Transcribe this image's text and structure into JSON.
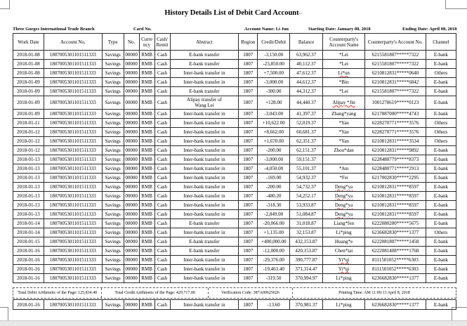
{
  "page": {
    "title": "History Details List of Debit Card Account",
    "info": {
      "branch": "Three Gorges International Trade Branch",
      "card_no_label": "Card No.",
      "account_name": "Account Name: Li Jun",
      "starting_date": "Starting Date:  January 08, 2018",
      "ending_date": "Ending Date: April 08, 2018"
    }
  },
  "table": {
    "col_keys": [
      "date",
      "account",
      "type",
      "no",
      "currency",
      "cash",
      "abstract",
      "region",
      "amount",
      "balance",
      "cp_name",
      "cp_account",
      "channel"
    ],
    "headers": [
      "Work Date",
      "Account No.",
      "Type",
      "No.",
      "Curre ncy",
      "Cash/ Remit",
      "Abstract",
      "Region",
      "Credit/Debit",
      "Balance",
      "Counterparty's Account Name",
      "Counterparty's Account No.",
      "Channel"
    ],
    "rows": [
      {
        "date": "2018-01-08",
        "account": "1807005301101511333",
        "type": "Savings",
        "no": "00000",
        "currency": "RMB",
        "cash": "Cash",
        "abstract": "E-bank transfer",
        "region": "1807",
        "amount": "-3,150.00",
        "balance": "63,962.37",
        "cp_name": "*Lei",
        "cp_account": "6215581807*****7322",
        "channel": "E-bank",
        "squiggle": false
      },
      {
        "date": "2018-01-08",
        "account": "1807005301101511333",
        "type": "Savings",
        "no": "00000",
        "currency": "RMB",
        "cash": "Cash",
        "abstract": "E-bank transfer",
        "region": "1807",
        "amount": "-23,850.00",
        "balance": "40,112.37",
        "cp_name": "*Lei",
        "cp_account": "6215581807*****7322",
        "channel": "E-bank",
        "squiggle": false
      },
      {
        "date": "2018-01-08",
        "account": "1807005301101511333",
        "type": "Savings",
        "no": "00000",
        "currency": "RMB",
        "cash": "Cash",
        "abstract": "Inter-bank transfer in",
        "region": "1807",
        "amount": "+7,500.00",
        "balance": "47,612.37",
        "cp_name": "Li*un",
        "cp_account": "6210812831*****0640",
        "channel": "Others",
        "squiggle": true
      },
      {
        "date": "2018-01-09",
        "account": "1807005301101511333",
        "type": "Savings",
        "no": "00000",
        "currency": "RMB",
        "cash": "Cash",
        "abstract": "Inter-bank transfer in",
        "region": "1807",
        "amount": "-3,000.00",
        "balance": "44,612.37",
        "cp_name": "*Bin",
        "cp_account": "6210812831*****6842",
        "channel": "E-bank",
        "squiggle": false
      },
      {
        "date": "2018-01-09",
        "account": "1807005301101511333",
        "type": "Savings",
        "no": "00000",
        "currency": "RMB",
        "cash": "Cash",
        "abstract": "E-bank transfer",
        "region": "1807",
        "amount": "-300.00",
        "balance": "44,312.37",
        "cp_name": "*Lei",
        "cp_account": "6215581807*****7322",
        "channel": "E-bank",
        "squiggle": false
      },
      {
        "date": "2018-01-09",
        "account": "1807005301101511333",
        "type": "Savings",
        "no": "00000",
        "currency": "RMB",
        "cash": "Cash",
        "abstract": "Alipay transfer of\nWang Lei",
        "region": "1807",
        "amount": "+128.00",
        "balance": "44,440.37",
        "cp_name": "Alipay *Jin",
        "cp_account": "1001278619*****0123",
        "channel": "E-bank",
        "squiggle": true
      },
      {
        "date": "2018-01-09",
        "account": "1807005301101511333",
        "type": "Savings",
        "no": "00000",
        "currency": "RMB",
        "cash": "Cash",
        "abstract": "Inter-bank transfer in",
        "region": "1807",
        "amount": "-3,043.00",
        "balance": "41,397.37",
        "cp_name": "Zhang*yang",
        "cp_account": "6217887000*****4743",
        "channel": "E-bank",
        "squiggle": false
      },
      {
        "date": "2018-01-11",
        "account": "1807005301101511333",
        "type": "Savings",
        "no": "00000",
        "currency": "RMB",
        "cash": "Cash",
        "abstract": "Inter-bank transfer in",
        "region": "1807",
        "amount": "+10,622.00",
        "balance": "52,019.37",
        "cp_name": "*Yan",
        "cp_account": "6228270771*****3576",
        "channel": "Others",
        "squiggle": false
      },
      {
        "date": "2018-01-12",
        "account": "1807005301101511333",
        "type": "Savings",
        "no": "00000",
        "currency": "RMB",
        "cash": "Cash",
        "abstract": "Inter-bank transfer in",
        "region": "1807",
        "amount": "+8,662.00",
        "balance": "60,681.37",
        "cp_name": "*Yan",
        "cp_account": "6228270771*****3576",
        "channel": "Others",
        "squiggle": false
      },
      {
        "date": "2018-01-12",
        "account": "1807005301101511333",
        "type": "Savings",
        "no": "00000",
        "currency": "RMB",
        "cash": "Cash",
        "abstract": "Inter-bank transfer in",
        "region": "1807",
        "amount": "+1,670.00",
        "balance": "62,351.37",
        "cp_name": "*Yan",
        "cp_account": "6210812831*****3534",
        "channel": "Others",
        "squiggle": false
      },
      {
        "date": "2018-01-12",
        "account": "1807005301101511333",
        "type": "Savings",
        "no": "00000",
        "currency": "RMB",
        "cash": "Cash",
        "abstract": "Inter-bank transfer in",
        "region": "1807",
        "amount": "-200.00",
        "balance": "62,151.37",
        "cp_name": "Zhou*dan",
        "cp_account": "6210812831*****9892",
        "channel": "E-bank",
        "squiggle": false
      },
      {
        "date": "2018-01-13",
        "account": "1807005301101511333",
        "type": "Savings",
        "no": "00000",
        "currency": "RMB",
        "cash": "Cash",
        "abstract": "Inter-bank transfer in",
        "region": "1807",
        "amount": "-3,000.00",
        "balance": "59,151.37",
        "cp_name": "",
        "cp_account": "6228480779*****8373",
        "channel": "E-bank",
        "squiggle": false
      },
      {
        "date": "2018-01-13",
        "account": "1807005301101511333",
        "type": "Savings",
        "no": "00000",
        "currency": "RMB",
        "cash": "Cash",
        "abstract": "Inter-bank transfer in",
        "region": "1807",
        "amount": "-4,050.00",
        "balance": "55,101.37",
        "cp_name": "*Jun",
        "cp_account": "6228480771*****2913",
        "channel": "E-bank",
        "squiggle": false
      },
      {
        "date": "2018-01-13",
        "account": "1807005301101511333",
        "type": "Savings",
        "no": "00000",
        "currency": "RMB",
        "cash": "Cash",
        "abstract": "Inter-bank transfer in",
        "region": "1807",
        "amount": "-169.00",
        "balance": "54,932.37",
        "cp_name": "*Fei",
        "cp_account": "6217002830*****2295",
        "channel": "E-bank",
        "squiggle": false
      },
      {
        "date": "2018-01-13",
        "account": "1807005301101511333",
        "type": "Savings",
        "no": "00000",
        "currency": "RMB",
        "cash": "Cash",
        "abstract": "Inter-bank transfer in",
        "region": "1807",
        "amount": "-200.00",
        "balance": "54,732.37",
        "cp_name": "Deng*ya",
        "cp_account": "6210812831*****8597",
        "channel": "E-bank",
        "squiggle": true
      },
      {
        "date": "2018-01-13",
        "account": "1807005301101511333",
        "type": "Savings",
        "no": "00000",
        "currency": "RMB",
        "cash": "Cash",
        "abstract": "Inter-bank transfer in",
        "region": "1807",
        "amount": "-480.20",
        "balance": "54,252.17",
        "cp_name": "Deng*ya",
        "cp_account": "6210812831*****8597",
        "channel": "E-bank",
        "squiggle": true
      },
      {
        "date": "2018-01-13",
        "account": "1807005301101511333",
        "type": "Savings",
        "no": "00000",
        "currency": "RMB",
        "cash": "Cash",
        "abstract": "Inter-bank transfer in",
        "region": "1807",
        "amount": "-318.30",
        "balance": "53,933.87",
        "cp_name": "Deng*ya",
        "cp_account": "6210812831*****8597",
        "channel": "E-bank",
        "squiggle": true
      },
      {
        "date": "2018-01-13",
        "account": "1807005301101511333",
        "type": "Savings",
        "no": "00000",
        "currency": "RMB",
        "cash": "Cash",
        "abstract": "Inter-bank transfer in",
        "region": "1807",
        "amount": "-2,849.00",
        "balance": "51,084.87",
        "cp_name": "Deng*ya",
        "cp_account": "6210812831*****8597",
        "channel": "E-bank",
        "squiggle": true
      },
      {
        "date": "2018-01-14",
        "account": "1807005301101511333",
        "type": "Savings",
        "no": "00000",
        "currency": "RMB",
        "cash": "Cash",
        "abstract": "E-bank transfer",
        "region": "1807",
        "amount": "-20,066.00",
        "balance": "31,018.87",
        "cp_name": "Liang*fen",
        "cp_account": "6222080200*****5675",
        "channel": "E-bank",
        "squiggle": false
      },
      {
        "date": "2018-01-14",
        "account": "1807005301101511333",
        "type": "Savings",
        "no": "00000",
        "currency": "RMB",
        "cash": "Cash",
        "abstract": "Inter-bank transfer in",
        "region": "1807",
        "amount": "+1,135.00",
        "balance": "32,153.87",
        "cp_name": "Li*ping",
        "cp_account": "6236682830*****1377",
        "channel": "Others",
        "squiggle": false
      },
      {
        "date": "2018-01-15",
        "account": "1807005301101511333",
        "type": "Savings",
        "no": "00000",
        "currency": "RMB",
        "cash": "Cash",
        "abstract": "E-bank transfer",
        "region": "1807",
        "amount": "+400,000.00",
        "balance": "432,153.87",
        "cp_name": "Huang*e",
        "cp_account": "6222081807*****1458",
        "channel": "E-bank",
        "squiggle": false
      },
      {
        "date": "2018-01-16",
        "account": "1807005301101511333",
        "type": "Savings",
        "no": "00000",
        "currency": "RMB",
        "cash": "Cash",
        "abstract": "E-bank transfer",
        "region": "1807",
        "amount": "-12,000.00",
        "balance": "420,153.87",
        "cp_name": "Chen*tai",
        "cp_account": "6222081408*****1768",
        "channel": "E-bank",
        "squiggle": false
      },
      {
        "date": "2018-01-16",
        "account": "1807005301101511333",
        "type": "Savings",
        "no": "00000",
        "currency": "RMB",
        "cash": "Cash",
        "abstract": "Inter-bank transfer in",
        "region": "1807",
        "amount": "-29,376.00",
        "balance": "390,777.87",
        "cp_name": "Yi*qi",
        "cp_account": "8111501052*****6303",
        "channel": "E-bank",
        "squiggle": true
      },
      {
        "date": "2018-01-16",
        "account": "1807005301101511333",
        "type": "Savings",
        "no": "00000",
        "currency": "RMB",
        "cash": "Cash",
        "abstract": "Inter-bank transfer in",
        "region": "1807",
        "amount": "-19,463.40",
        "balance": "371,314.47",
        "cp_name": "Yi*qi",
        "cp_account": "8111501052*****6303",
        "channel": "E-bank",
        "squiggle": true
      },
      {
        "date": "2018-01-16",
        "account": "1807005301101511333",
        "type": "Savings",
        "no": "00000",
        "currency": "RMB",
        "cash": "Cash",
        "abstract": "Inter-bank transfer in",
        "region": "1807",
        "amount": "-319.50",
        "balance": "370,994.97",
        "cp_name": "Li*ping",
        "cp_account": "6236682830*****1377",
        "channel": "E-bank",
        "squiggle": false
      }
    ]
  },
  "summary": {
    "total_debit": "Total Debit Arithmetic of the Page: 125,834.40",
    "total_credit": "Total Credit Arithmetic of the Page: 429,717.00",
    "verification_code": "Verification Code: 387A00625026",
    "printing_time": "Printing Time: AM 11:09:13 April 8, 2018"
  },
  "extra_row": {
    "date": "2018-01-16",
    "account": "1807005301101511333",
    "type": "Savings",
    "no": "00000",
    "currency": "RMB",
    "cash": "Cash",
    "abstract": "Inter-bank transfer in",
    "region": "1807",
    "amount": "-13.60",
    "balance": "370,981.37",
    "cp_name": "Li*ping",
    "cp_account": "6236682830*****1377",
    "channel": "E-bank",
    "squiggle": false
  }
}
